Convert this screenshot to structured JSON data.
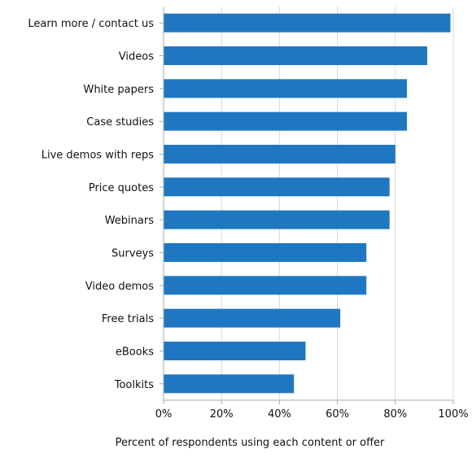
{
  "chart_data": {
    "type": "bar",
    "orientation": "horizontal",
    "categories": [
      "Learn more / contact us",
      "Videos",
      "White papers",
      "Case studies",
      "Live demos with reps",
      "Price quotes",
      "Webinars",
      "Surveys",
      "Video demos",
      "Free trials",
      "eBooks",
      "Toolkits"
    ],
    "values": [
      99,
      91,
      84,
      84,
      80,
      78,
      78,
      70,
      70,
      61,
      49,
      45
    ],
    "xlabel": "Percent of respondents using each content or offer",
    "ylabel": "",
    "xlim": [
      0,
      100
    ],
    "xticks": [
      0,
      20,
      40,
      60,
      80,
      100
    ],
    "xtick_labels": [
      "0%",
      "20%",
      "40%",
      "60%",
      "80%",
      "100%"
    ],
    "grid": "vertical",
    "bar_color": "#1f77c1",
    "grid_color": "#d9d9d9",
    "axis_color": "#aaaaaa"
  }
}
